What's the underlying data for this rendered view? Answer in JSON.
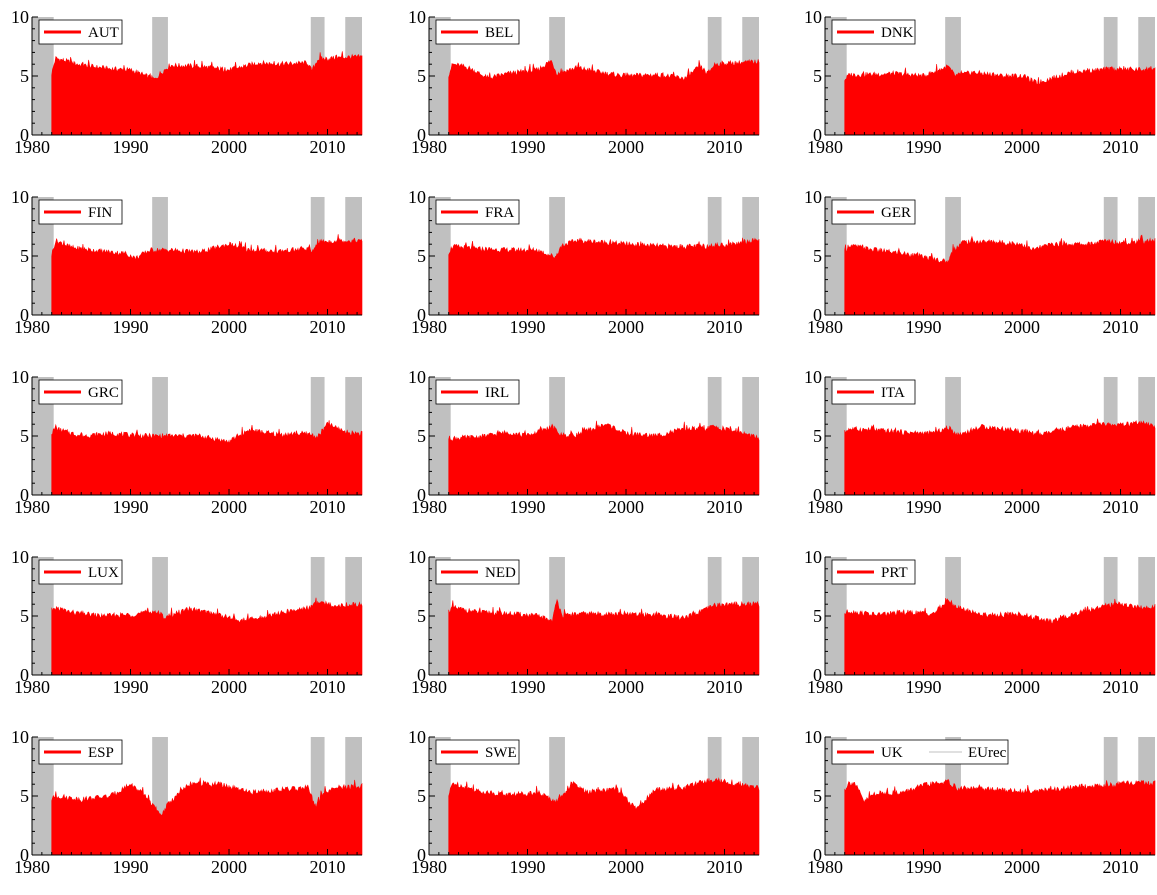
{
  "chart_data": {
    "type": "area",
    "layout": {
      "rows": 5,
      "cols": 3
    },
    "xlim": [
      1980,
      2013.5
    ],
    "ylim": [
      0,
      10
    ],
    "xticks": [
      1980,
      1990,
      2000,
      2010
    ],
    "yticks": [
      0,
      5,
      10
    ],
    "series_start": 1982,
    "colors": {
      "series": "#ff0000",
      "recession": "#c0c0c0",
      "axis": "#000000"
    },
    "recession_periods": [
      [
        1980,
        1982.2
      ],
      [
        1992.2,
        1993.8
      ],
      [
        2008.3,
        2009.7
      ],
      [
        2011.8,
        2013.5
      ]
    ],
    "shared_legend_extra": "EUrec",
    "panels": [
      {
        "name": "AUT",
        "x": [
          1982,
          1982.4,
          1985,
          1988,
          1990,
          1992.5,
          1993,
          1994,
          1997,
          2000,
          2003,
          2005,
          2008,
          2008.4,
          2009,
          2012,
          2013.4
        ],
        "y": [
          5.2,
          6.5,
          5.9,
          5.6,
          5.5,
          4.7,
          5.2,
          5.9,
          5.8,
          5.5,
          6.1,
          6.0,
          6.1,
          5.4,
          6.4,
          6.6,
          6.6
        ]
      },
      {
        "name": "BEL",
        "x": [
          1982,
          1982.4,
          1984,
          1986,
          1988,
          1991,
          1992.4,
          1993,
          1995,
          1998,
          2000,
          2003,
          2006,
          2007.5,
          2008.3,
          2009,
          2011,
          2013.4
        ],
        "y": [
          5.1,
          6.0,
          5.7,
          4.8,
          5.2,
          5.5,
          6.3,
          5.2,
          5.7,
          5.2,
          5.0,
          5.1,
          4.8,
          5.8,
          5.2,
          6.0,
          6.1,
          6.2
        ]
      },
      {
        "name": "DNK",
        "x": [
          1982,
          1982.5,
          1984,
          1987,
          1990,
          1992.5,
          1993.2,
          1995,
          1998,
          2000,
          2001.5,
          2005,
          2008,
          2009,
          2011,
          2013.4
        ],
        "y": [
          4.7,
          5.1,
          5.1,
          5.2,
          5.0,
          5.8,
          5.0,
          5.3,
          5.0,
          5.0,
          4.4,
          5.3,
          5.5,
          5.6,
          5.5,
          5.6
        ]
      },
      {
        "name": "FIN",
        "x": [
          1982,
          1982.4,
          1984,
          1987,
          1989.5,
          1990.5,
          1992,
          1994,
          1997,
          2000,
          2002,
          2005,
          2008,
          2008.4,
          2009,
          2012,
          2013.4
        ],
        "y": [
          5.1,
          6.3,
          5.7,
          5.4,
          5.2,
          4.8,
          5.5,
          5.5,
          5.3,
          6.0,
          5.5,
          5.4,
          5.6,
          5.3,
          6.2,
          6.3,
          6.3
        ]
      },
      {
        "name": "FRA",
        "x": [
          1982,
          1982.4,
          1985,
          1988,
          1991,
          1992.8,
          1993.5,
          1995,
          1997,
          2000,
          2004,
          2008,
          2009,
          2011,
          2013.4
        ],
        "y": [
          5.3,
          5.8,
          5.6,
          5.5,
          5.5,
          4.9,
          5.9,
          6.3,
          6.2,
          6.0,
          5.8,
          5.8,
          5.9,
          6.0,
          6.4
        ]
      },
      {
        "name": "GER",
        "x": [
          1982,
          1982.4,
          1985,
          1988,
          1990,
          1992.5,
          1993,
          1994,
          1997,
          2000,
          2001,
          2003,
          2007,
          2008.5,
          2010,
          2013.4
        ],
        "y": [
          5.3,
          5.9,
          5.5,
          5.2,
          4.9,
          4.5,
          5.5,
          6.2,
          6.2,
          6.0,
          5.5,
          6.0,
          6.0,
          6.3,
          6.1,
          6.3
        ]
      },
      {
        "name": "GRC",
        "x": [
          1982,
          1982.4,
          1985,
          1988,
          1991,
          1994,
          1997,
          2000,
          2002,
          2005,
          2008,
          2009,
          2010,
          2012,
          2013.4
        ],
        "y": [
          5.3,
          5.6,
          5.0,
          5.2,
          5.0,
          5.0,
          5.0,
          4.5,
          5.5,
          5.1,
          5.2,
          4.9,
          6.0,
          5.3,
          5.2
        ]
      },
      {
        "name": "IRL",
        "x": [
          1982,
          1982.4,
          1985,
          1988,
          1990,
          1992.5,
          1993.5,
          1995,
          1998,
          2000,
          2003,
          2006,
          2008,
          2009,
          2012,
          2013.4
        ],
        "y": [
          4.8,
          4.8,
          4.9,
          5.3,
          5.0,
          5.8,
          5.0,
          5.1,
          6.0,
          5.2,
          5.0,
          5.6,
          5.6,
          5.8,
          5.2,
          4.8
        ]
      },
      {
        "name": "ITA",
        "x": [
          1982,
          1982.4,
          1985,
          1988,
          1991,
          1992.5,
          1993.5,
          1996,
          2000,
          2002,
          2005,
          2008,
          2010,
          2012,
          2013.4
        ],
        "y": [
          5.3,
          5.6,
          5.5,
          5.3,
          5.2,
          5.7,
          5.1,
          5.8,
          5.4,
          5.1,
          5.7,
          6.0,
          5.9,
          6.1,
          5.8
        ]
      },
      {
        "name": "LUX",
        "x": [
          1982,
          1982.4,
          1984,
          1987,
          1990,
          1992.5,
          1993.5,
          1996,
          1999,
          2001,
          2003,
          2005,
          2008,
          2009,
          2011,
          2013.4
        ],
        "y": [
          5.2,
          5.7,
          5.3,
          5.0,
          5.1,
          5.4,
          4.9,
          5.6,
          5.1,
          4.6,
          4.8,
          5.2,
          5.7,
          6.1,
          5.9,
          6.0
        ]
      },
      {
        "name": "NED",
        "x": [
          1982,
          1982.4,
          1985,
          1988,
          1991,
          1992.5,
          1993,
          1993.6,
          1996,
          2000,
          2003,
          2006,
          2008,
          2009,
          2011,
          2013.4
        ],
        "y": [
          5.4,
          5.7,
          5.3,
          5.2,
          5.0,
          4.6,
          6.3,
          5.0,
          5.2,
          5.1,
          5.1,
          4.8,
          5.5,
          5.9,
          6.0,
          6.0
        ]
      },
      {
        "name": "PRT",
        "x": [
          1982,
          1982.4,
          1985,
          1988,
          1991,
          1992.5,
          1993.5,
          1996,
          2000,
          2003,
          2005,
          2008,
          2010,
          2012,
          2013.4
        ],
        "y": [
          5.2,
          5.4,
          5.1,
          5.3,
          5.2,
          6.3,
          5.7,
          5.1,
          5.1,
          4.5,
          5.1,
          5.8,
          6.0,
          5.7,
          5.8
        ]
      },
      {
        "name": "ESP",
        "x": [
          1982,
          1982.4,
          1985,
          1988,
          1990,
          1991.5,
          1992.5,
          1993,
          1994,
          1996,
          1999,
          2002,
          2005,
          2008,
          2008.8,
          2009.5,
          2011,
          2013.4
        ],
        "y": [
          4.7,
          5.0,
          4.7,
          5.0,
          6.0,
          5.0,
          4.0,
          3.3,
          4.5,
          6.0,
          6.0,
          5.3,
          5.5,
          5.7,
          4.0,
          5.2,
          5.7,
          5.8
        ]
      },
      {
        "name": "SWE",
        "x": [
          1982,
          1982.4,
          1985,
          1988,
          1991,
          1993,
          1994.5,
          1996,
          1999,
          2001,
          2003,
          2006,
          2008,
          2009.5,
          2011,
          2013.4
        ],
        "y": [
          5.0,
          6.1,
          5.4,
          5.1,
          5.3,
          4.5,
          6.1,
          5.3,
          5.6,
          3.9,
          5.5,
          5.7,
          6.3,
          6.3,
          6.0,
          5.7
        ]
      },
      {
        "name": "UK",
        "x": [
          1982,
          1982.4,
          1983,
          1984,
          1985,
          1988,
          1990,
          1992.5,
          1993.5,
          1996,
          2000,
          2003,
          2006,
          2009,
          2011,
          2013.4
        ],
        "y": [
          5.5,
          6.1,
          6.1,
          4.5,
          5.2,
          5.3,
          5.9,
          6.2,
          5.6,
          5.6,
          5.4,
          5.5,
          5.8,
          5.9,
          6.1,
          6.1
        ]
      }
    ]
  }
}
